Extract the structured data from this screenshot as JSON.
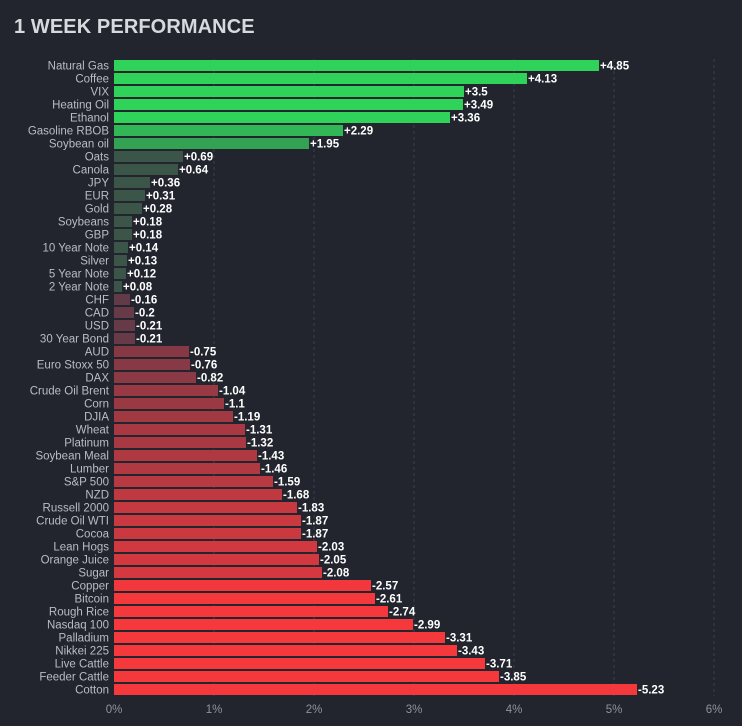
{
  "header": {
    "title": "1 WEEK PERFORMANCE"
  },
  "chart_data": {
    "type": "bar",
    "orientation": "horizontal",
    "title": "1 WEEK PERFORMANCE",
    "xlabel": "",
    "ylabel": "",
    "xlim": [
      0,
      6
    ],
    "x_ticks": [
      "0%",
      "1%",
      "2%",
      "3%",
      "4%",
      "5%",
      "6%"
    ],
    "grid": true,
    "note": "bar length shows absolute value; positive bars green, negative bars red",
    "categories": [
      "Natural Gas",
      "Coffee",
      "VIX",
      "Heating Oil",
      "Ethanol",
      "Gasoline RBOB",
      "Soybean oil",
      "Oats",
      "Canola",
      "JPY",
      "EUR",
      "Gold",
      "Soybeans",
      "GBP",
      "10 Year Note",
      "Silver",
      "5 Year Note",
      "2 Year Note",
      "CHF",
      "CAD",
      "USD",
      "30 Year Bond",
      "AUD",
      "Euro Stoxx 50",
      "DAX",
      "Crude Oil Brent",
      "Corn",
      "DJIA",
      "Wheat",
      "Platinum",
      "Soybean Meal",
      "Lumber",
      "S&P 500",
      "NZD",
      "Russell 2000",
      "Crude Oil WTI",
      "Cocoa",
      "Lean Hogs",
      "Orange Juice",
      "Sugar",
      "Copper",
      "Bitcoin",
      "Rough Rice",
      "Nasdaq 100",
      "Palladium",
      "Nikkei 225",
      "Live Cattle",
      "Feeder Cattle",
      "Cotton"
    ],
    "values": [
      4.85,
      4.13,
      3.5,
      3.49,
      3.36,
      2.29,
      1.95,
      0.69,
      0.64,
      0.36,
      0.31,
      0.28,
      0.18,
      0.18,
      0.14,
      0.13,
      0.12,
      0.08,
      -0.16,
      -0.2,
      -0.21,
      -0.21,
      -0.75,
      -0.76,
      -0.82,
      -1.04,
      -1.1,
      -1.19,
      -1.31,
      -1.32,
      -1.43,
      -1.46,
      -1.59,
      -1.68,
      -1.83,
      -1.87,
      -1.87,
      -2.03,
      -2.05,
      -2.08,
      -2.57,
      -2.61,
      -2.74,
      -2.99,
      -3.31,
      -3.43,
      -3.71,
      -3.85,
      -5.23
    ],
    "value_labels": [
      "+4.85",
      "+4.13",
      "+3.5",
      "+3.49",
      "+3.36",
      "+2.29",
      "+1.95",
      "+0.69",
      "+0.64",
      "+0.36",
      "+0.31",
      "+0.28",
      "+0.18",
      "+0.18",
      "+0.14",
      "+0.13",
      "+0.12",
      "+0.08",
      "-0.16",
      "-0.2",
      "-0.21",
      "-0.21",
      "-0.75",
      "-0.76",
      "-0.82",
      "-1.04",
      "-1.1",
      "-1.19",
      "-1.31",
      "-1.32",
      "-1.43",
      "-1.46",
      "-1.59",
      "-1.68",
      "-1.83",
      "-1.87",
      "-1.87",
      "-2.03",
      "-2.05",
      "-2.08",
      "-2.57",
      "-2.61",
      "-2.74",
      "-2.99",
      "-3.31",
      "-3.43",
      "-3.71",
      "-3.85",
      "-5.23"
    ],
    "colors": {
      "background": "#22252e",
      "gridline": "#3a3e49",
      "positive_strong": "#2fd35a",
      "positive_weak": "#3b5548",
      "negative_weak": "#5a3a48",
      "negative_strong": "#f5383c"
    }
  }
}
